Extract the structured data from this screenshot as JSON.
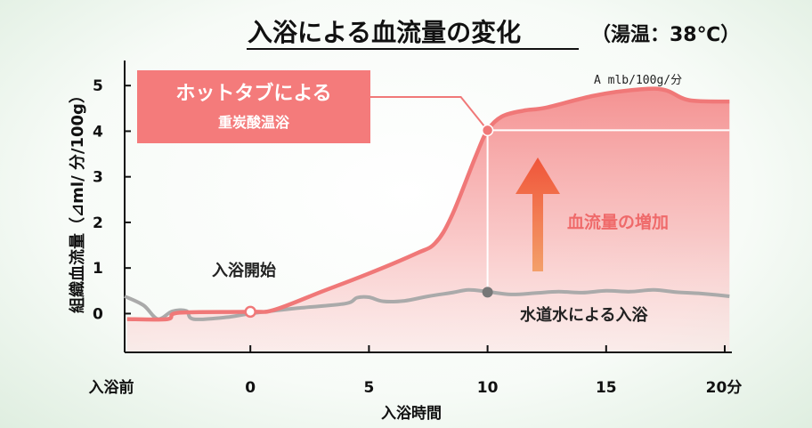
{
  "chart_data": {
    "type": "area",
    "title": "入浴による血流量の変化",
    "subtitle": "（湯温：38℃）",
    "ylabel": "組織血流量（⊿ml/ 分/100g）",
    "xlabel": "入浴時間",
    "unit_note": "A mlb/100g/分",
    "x_ticks": [
      {
        "x": -5,
        "label": "入浴前"
      },
      {
        "x": 0,
        "label": "0"
      },
      {
        "x": 5,
        "label": "5"
      },
      {
        "x": 10,
        "label": "10"
      },
      {
        "x": 15,
        "label": "15"
      },
      {
        "x": 20,
        "label": "20分"
      }
    ],
    "y_ticks": [
      0,
      1,
      2,
      3,
      4,
      5
    ],
    "xlim": [
      -5.3,
      20.3
    ],
    "ylim": [
      -0.85,
      5.55
    ],
    "series": [
      {
        "name": "ホットタブによる重炭酸温浴",
        "color": "#f07878",
        "points": [
          [
            -5.2,
            -0.12
          ],
          [
            -3.5,
            -0.12
          ],
          [
            -3.0,
            0.02
          ],
          [
            0,
            0.04
          ],
          [
            1.0,
            0.08
          ],
          [
            3.0,
            0.48
          ],
          [
            5.0,
            0.88
          ],
          [
            7.0,
            1.32
          ],
          [
            7.8,
            1.55
          ],
          [
            8.5,
            2.15
          ],
          [
            9.5,
            3.45
          ],
          [
            10.0,
            4.02
          ],
          [
            10.6,
            4.32
          ],
          [
            11.5,
            4.45
          ],
          [
            12.5,
            4.52
          ],
          [
            14.5,
            4.78
          ],
          [
            16.5,
            4.92
          ],
          [
            17.5,
            4.9
          ],
          [
            18.5,
            4.68
          ],
          [
            20.2,
            4.65
          ]
        ]
      },
      {
        "name": "水道水による入浴",
        "color": "#aaaaaa",
        "points": [
          [
            -5.3,
            0.38
          ],
          [
            -4.5,
            0.18
          ],
          [
            -3.9,
            -0.12
          ],
          [
            -3.3,
            0.05
          ],
          [
            -2.7,
            0.06
          ],
          [
            -2.4,
            -0.12
          ],
          [
            -1.0,
            -0.08
          ],
          [
            0.0,
            0.0
          ],
          [
            2.0,
            0.12
          ],
          [
            4.0,
            0.22
          ],
          [
            4.5,
            0.35
          ],
          [
            5.0,
            0.36
          ],
          [
            5.6,
            0.27
          ],
          [
            6.5,
            0.28
          ],
          [
            7.5,
            0.38
          ],
          [
            8.5,
            0.46
          ],
          [
            9.2,
            0.52
          ],
          [
            10.0,
            0.48
          ],
          [
            11.0,
            0.42
          ],
          [
            12.0,
            0.45
          ],
          [
            13.0,
            0.48
          ],
          [
            14.0,
            0.46
          ],
          [
            15.0,
            0.5
          ],
          [
            16.0,
            0.48
          ],
          [
            17.0,
            0.52
          ],
          [
            18.0,
            0.47
          ],
          [
            19.0,
            0.44
          ],
          [
            20.2,
            0.38
          ]
        ]
      }
    ],
    "annotations": {
      "label_box": {
        "line1": "ホットタブによる",
        "line2": "重炭酸温浴",
        "bg": "#f47b7b"
      },
      "start_label": "入浴開始",
      "start_point": {
        "x": 0,
        "y": 0.04
      },
      "increase_label": "血流量の増加",
      "tap_label": "水道水による入浴",
      "marker_red": {
        "x": 10,
        "y": 4.02
      },
      "marker_gray": {
        "x": 10,
        "y": 0.47
      },
      "leader_y": 4.75
    }
  }
}
